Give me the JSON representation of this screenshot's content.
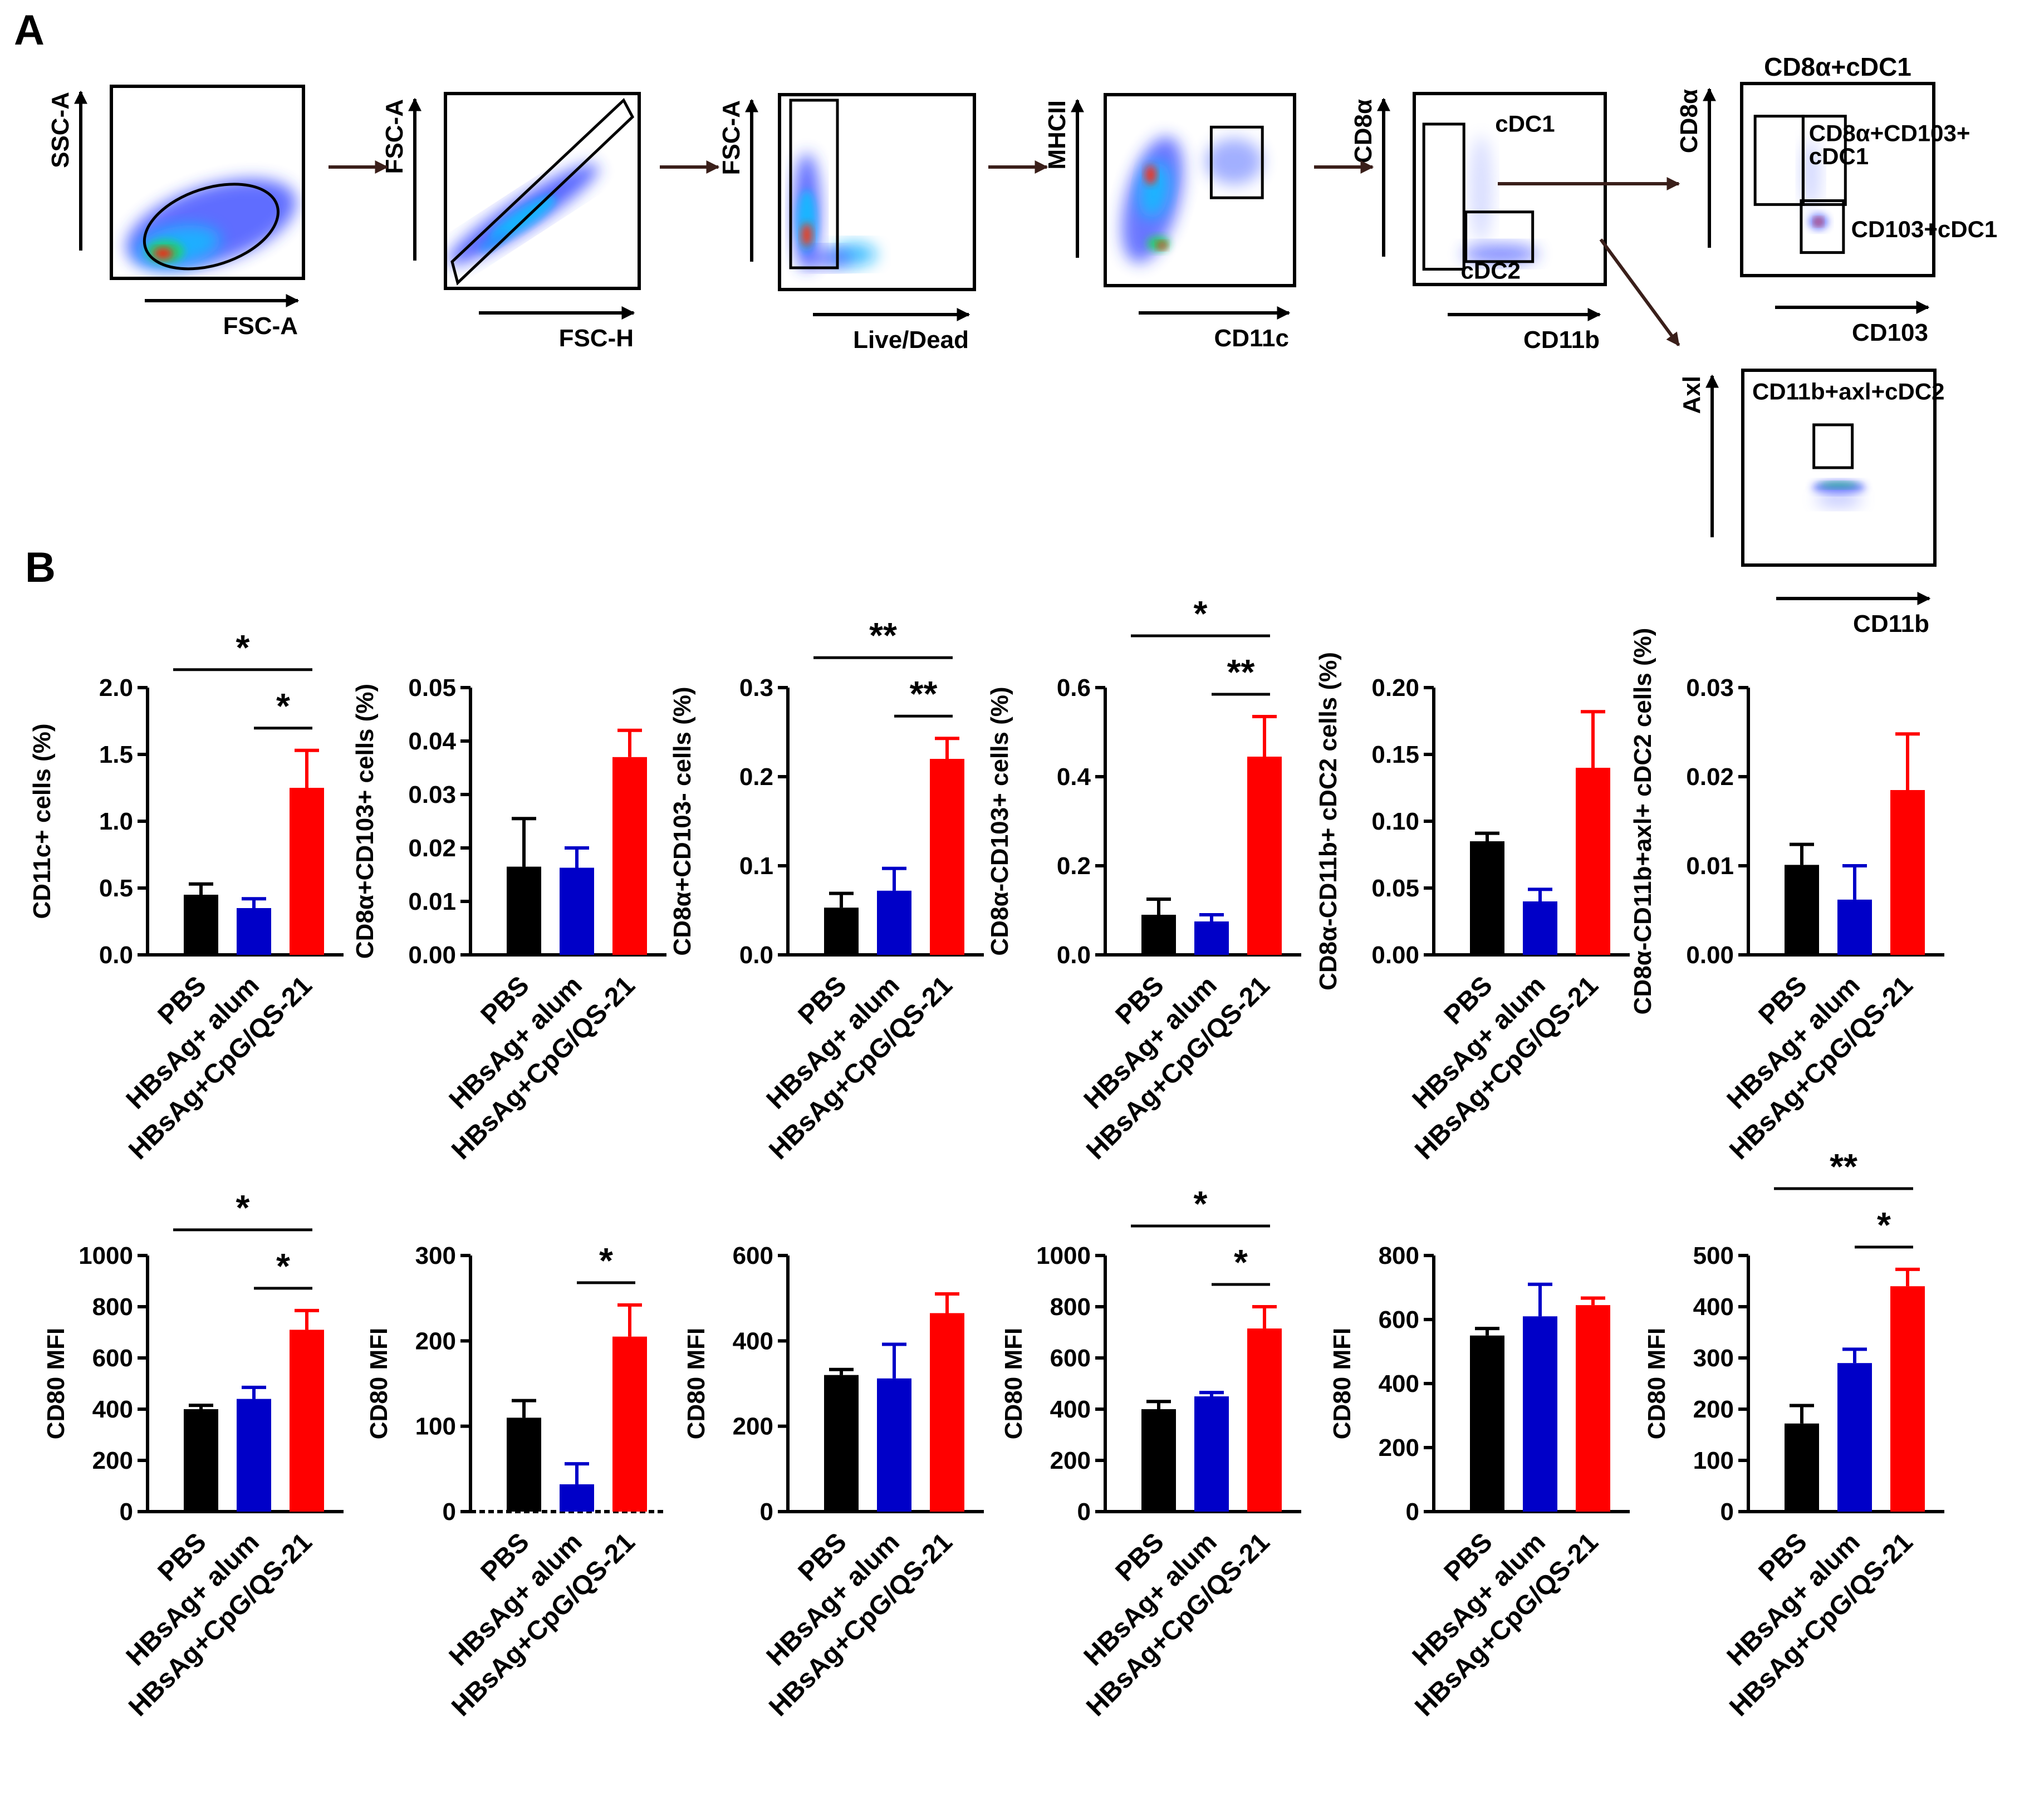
{
  "panels": {
    "a": "A",
    "b": "B"
  },
  "colors": {
    "pbs": "#000000",
    "alum": "#0000c8",
    "cpg": "#ff0000",
    "flow_arrow": "#3a1f1a"
  },
  "gating": [
    {
      "title": "",
      "xlabel": "FSC-A",
      "ylabel": "SSC-A",
      "gates": []
    },
    {
      "title": "",
      "xlabel": "FSC-H",
      "ylabel": "FSC-A",
      "gates": []
    },
    {
      "title": "",
      "xlabel": "Live/Dead",
      "ylabel": "FSC-A",
      "gates": []
    },
    {
      "title": "",
      "xlabel": "CD11c",
      "ylabel": "MHCII",
      "gates": []
    },
    {
      "title": "",
      "xlabel": "CD11b",
      "ylabel": "CD8α",
      "gates": [
        "cDC1",
        "cDC2"
      ]
    },
    {
      "title": "CD8α+cDC1",
      "xlabel": "CD103",
      "ylabel": "CD8α",
      "gates": [
        "CD8α+CD103+",
        "cDC1",
        "CD103+cDC1"
      ]
    },
    {
      "title": "",
      "xlabel": "CD11b",
      "ylabel": "Axl",
      "gates": [
        "CD11b+axl+cDC2"
      ]
    }
  ],
  "chart_data": [
    {
      "type": "bar",
      "title": "",
      "categories": [
        "PBS",
        "HBsAg+ alum",
        "HBsAg+CpG/QS-21"
      ],
      "ylabel": "CD11c+ cells (%)",
      "ylim": [
        0,
        2.0
      ],
      "ticks": [
        "0.0",
        "0.5",
        "1.0",
        "1.5",
        "2.0"
      ],
      "values": [
        0.45,
        0.35,
        1.25
      ],
      "errors": [
        0.08,
        0.07,
        0.28
      ],
      "sig": [
        {
          "from": 0,
          "to": 2,
          "label": "*",
          "level": 2
        },
        {
          "from": 1,
          "to": 2,
          "label": "*",
          "level": 1
        }
      ]
    },
    {
      "type": "bar",
      "title": "",
      "categories": [
        "PBS",
        "HBsAg+ alum",
        "HBsAg+CpG/QS-21"
      ],
      "ylabel": "CD8α+CD103+ cells (%)",
      "ylim": [
        0,
        0.05
      ],
      "ticks": [
        "0.00",
        "0.01",
        "0.02",
        "0.03",
        "0.04",
        "0.05"
      ],
      "values": [
        0.0165,
        0.0163,
        0.037
      ],
      "errors": [
        0.009,
        0.0037,
        0.005
      ],
      "sig": []
    },
    {
      "type": "bar",
      "title": "",
      "categories": [
        "PBS",
        "HBsAg+ alum",
        "HBsAg+CpG/QS-21"
      ],
      "ylabel": "CD8α+CD103- cells (%)",
      "ylim": [
        0,
        0.3
      ],
      "ticks": [
        "0.0",
        "0.1",
        "0.2",
        "0.3"
      ],
      "values": [
        0.053,
        0.072,
        0.22
      ],
      "errors": [
        0.016,
        0.025,
        0.023
      ],
      "sig": [
        {
          "from": 0,
          "to": 2,
          "label": "**",
          "level": 2
        },
        {
          "from": 1,
          "to": 2,
          "label": "**",
          "level": 1
        }
      ]
    },
    {
      "type": "bar",
      "title": "",
      "categories": [
        "PBS",
        "HBsAg+ alum",
        "HBsAg+CpG/QS-21"
      ],
      "ylabel": "CD8α-CD103+ cells (%)",
      "ylim": [
        0,
        0.6
      ],
      "ticks": [
        "0.0",
        "0.2",
        "0.4",
        "0.6"
      ],
      "values": [
        0.09,
        0.075,
        0.445
      ],
      "errors": [
        0.035,
        0.015,
        0.09
      ],
      "sig": [
        {
          "from": 0,
          "to": 2,
          "label": "*",
          "level": 2
        },
        {
          "from": 1,
          "to": 2,
          "label": "**",
          "level": 1
        }
      ]
    },
    {
      "type": "bar",
      "title": "",
      "categories": [
        "PBS",
        "HBsAg+ alum",
        "HBsAg+CpG/QS-21"
      ],
      "ylabel": "CD8α-CD11b+ cDC2 cells (%)",
      "ylim": [
        0,
        0.2
      ],
      "ticks": [
        "0.00",
        "0.05",
        "0.10",
        "0.15",
        "0.20"
      ],
      "values": [
        0.085,
        0.04,
        0.14
      ],
      "errors": [
        0.006,
        0.009,
        0.042
      ],
      "sig": []
    },
    {
      "type": "bar",
      "title": "",
      "categories": [
        "PBS",
        "HBsAg+ alum",
        "HBsAg+CpG/QS-21"
      ],
      "ylabel": "CD8α-CD11b+axl+ cDC2 cells (%)",
      "ylim": [
        0,
        0.03
      ],
      "ticks": [
        "0.00",
        "0.01",
        "0.02",
        "0.03"
      ],
      "values": [
        0.0101,
        0.0062,
        0.0185
      ],
      "errors": [
        0.0023,
        0.0038,
        0.0063
      ],
      "sig": []
    },
    {
      "type": "bar",
      "title": "",
      "categories": [
        "PBS",
        "HBsAg+ alum",
        "HBsAg+CpG/QS-21"
      ],
      "ylabel": "CD80 MFI",
      "ylim": [
        0,
        1000
      ],
      "ticks": [
        "0",
        "200",
        "400",
        "600",
        "800",
        "1000"
      ],
      "values": [
        400,
        440,
        710
      ],
      "errors": [
        15,
        45,
        75
      ],
      "sig": [
        {
          "from": 0,
          "to": 2,
          "label": "*",
          "level": 2
        },
        {
          "from": 1,
          "to": 2,
          "label": "*",
          "level": 1
        }
      ]
    },
    {
      "type": "bar",
      "title": "",
      "categories": [
        "PBS",
        "HBsAg+ alum",
        "HBsAg+CpG/QS-21"
      ],
      "ylabel": "CD80 MFI",
      "ylim": [
        0,
        300
      ],
      "ticks": [
        "0",
        "100",
        "200",
        "300"
      ],
      "values": [
        110,
        32,
        205
      ],
      "errors": [
        20,
        24,
        37
      ],
      "sig": [
        {
          "from": 1,
          "to": 2,
          "label": "*",
          "level": 1
        }
      ]
    },
    {
      "type": "bar",
      "title": "",
      "categories": [
        "PBS",
        "HBsAg+ alum",
        "HBsAg+CpG/QS-21"
      ],
      "ylabel": "CD80 MFI",
      "ylim": [
        0,
        600
      ],
      "ticks": [
        "0",
        "200",
        "400",
        "600"
      ],
      "values": [
        320,
        312,
        465
      ],
      "errors": [
        13,
        80,
        45
      ],
      "sig": []
    },
    {
      "type": "bar",
      "title": "",
      "categories": [
        "PBS",
        "HBsAg+ alum",
        "HBsAg+CpG/QS-21"
      ],
      "ylabel": "CD80 MFI",
      "ylim": [
        0,
        1000
      ],
      "ticks": [
        "0",
        "200",
        "400",
        "600",
        "800",
        "1000"
      ],
      "values": [
        400,
        450,
        715
      ],
      "errors": [
        30,
        15,
        85
      ],
      "sig": [
        {
          "from": 0,
          "to": 2,
          "label": "*",
          "level": 2
        },
        {
          "from": 1,
          "to": 2,
          "label": "*",
          "level": 1
        }
      ]
    },
    {
      "type": "bar",
      "title": "",
      "categories": [
        "PBS",
        "HBsAg+ alum",
        "HBsAg+CpG/QS-21"
      ],
      "ylabel": "CD80 MFI",
      "ylim": [
        0,
        800
      ],
      "ticks": [
        "0",
        "200",
        "400",
        "600",
        "800"
      ],
      "values": [
        550,
        610,
        645
      ],
      "errors": [
        22,
        100,
        22
      ],
      "sig": []
    },
    {
      "type": "bar",
      "title": "",
      "categories": [
        "PBS",
        "HBsAg+ alum",
        "HBsAg+CpG/QS-21"
      ],
      "ylabel": "CD80 MFI",
      "ylim": [
        0,
        500
      ],
      "ticks": [
        "0",
        "100",
        "200",
        "300",
        "400",
        "500"
      ],
      "values": [
        172,
        290,
        440
      ],
      "errors": [
        35,
        27,
        33
      ],
      "sig": [
        {
          "from": 0,
          "to": 2,
          "label": "**",
          "level": 2
        },
        {
          "from": 1,
          "to": 2,
          "label": "*",
          "level": 1
        }
      ]
    }
  ]
}
